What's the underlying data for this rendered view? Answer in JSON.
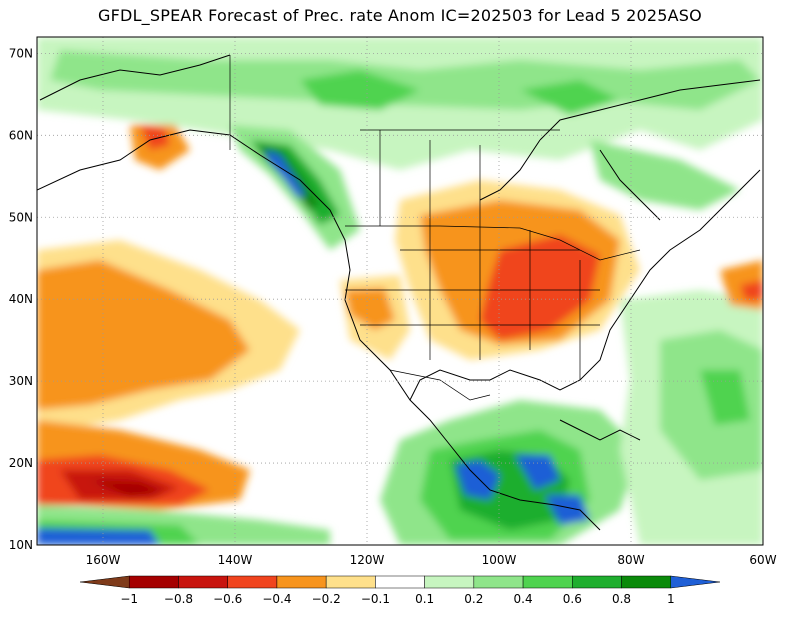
{
  "title": "GFDL_SPEAR Forecast of Prec. rate Anom IC=202503 for Lead 5 2025ASO",
  "map": {
    "lat_labels": [
      "70N",
      "60N",
      "50N",
      "40N",
      "30N",
      "20N",
      "10N"
    ],
    "lon_labels": [
      "160W",
      "140W",
      "120W",
      "100W",
      "80W",
      "60W"
    ],
    "lat_range": [
      10,
      72
    ],
    "lon_range": [
      -170,
      -60
    ]
  },
  "colorbar": {
    "labels": [
      "−1",
      "−0.8",
      "−0.6",
      "−0.4",
      "−0.2",
      "−0.1",
      "0.1",
      "0.2",
      "0.4",
      "0.6",
      "0.8",
      "1"
    ],
    "colors": [
      "#7f3b1a",
      "#a50000",
      "#c8140e",
      "#f0441e",
      "#f7941d",
      "#fee08b",
      "#ffffff",
      "#c7f5c0",
      "#8fe58a",
      "#4fd34f",
      "#1fae2e",
      "#0a8a0a",
      "#1f5fd6"
    ]
  }
}
